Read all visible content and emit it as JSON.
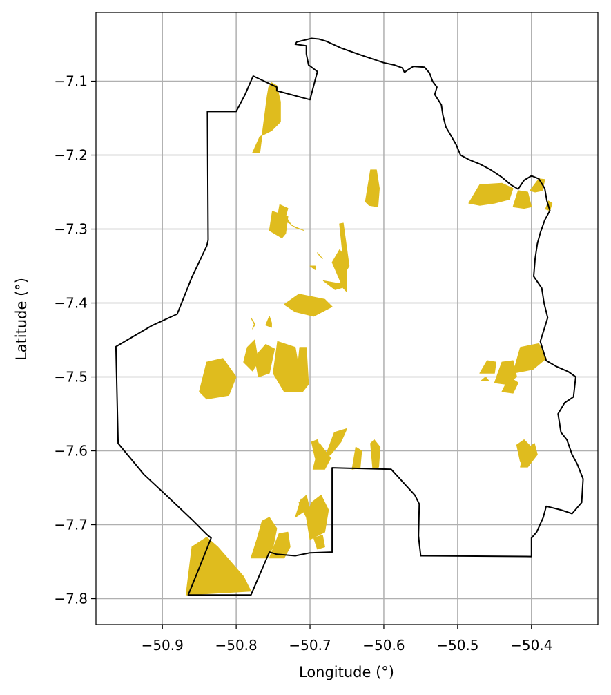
{
  "chart_data": {
    "type": "map",
    "xlabel": "Longitude (°)",
    "ylabel": "Latitude (°)",
    "xlim": [
      -50.99,
      -50.31
    ],
    "ylim": [
      -7.835,
      -7.007
    ],
    "grid": true,
    "x_ticks": [
      {
        "value": -50.9,
        "label": "−50.9"
      },
      {
        "value": -50.8,
        "label": "−50.8"
      },
      {
        "value": -50.7,
        "label": "−50.7"
      },
      {
        "value": -50.6,
        "label": "−50.6"
      },
      {
        "value": -50.5,
        "label": "−50.5"
      },
      {
        "value": -50.4,
        "label": "−50.4"
      }
    ],
    "y_ticks": [
      {
        "value": -7.1,
        "label": "−7.1"
      },
      {
        "value": -7.2,
        "label": "−7.2"
      },
      {
        "value": -7.3,
        "label": "−7.3"
      },
      {
        "value": -7.4,
        "label": "−7.4"
      },
      {
        "value": -7.5,
        "label": "−7.5"
      },
      {
        "value": -7.6,
        "label": "−7.6"
      },
      {
        "value": -7.7,
        "label": "−7.7"
      },
      {
        "value": -7.8,
        "label": "−7.8"
      }
    ],
    "colors": {
      "boundary": "#000000",
      "fill": "#DFBC1E",
      "grid": "#b0b0b0"
    },
    "boundary": [
      [
        -50.78,
        -7.795
      ],
      [
        -50.865,
        -7.795
      ],
      [
        -50.85,
        -7.758
      ],
      [
        -50.834,
        -7.718
      ],
      [
        -50.84,
        -7.713
      ],
      [
        -50.86,
        -7.693
      ],
      [
        -50.895,
        -7.66
      ],
      [
        -50.925,
        -7.632
      ],
      [
        -50.96,
        -7.59
      ],
      [
        -50.963,
        -7.459
      ],
      [
        -50.915,
        -7.431
      ],
      [
        -50.88,
        -7.415
      ],
      [
        -50.86,
        -7.365
      ],
      [
        -50.84,
        -7.323
      ],
      [
        -50.838,
        -7.315
      ],
      [
        -50.839,
        -7.141
      ],
      [
        -50.8,
        -7.141
      ],
      [
        -50.788,
        -7.118
      ],
      [
        -50.777,
        -7.093
      ],
      [
        -50.745,
        -7.108
      ],
      [
        -50.745,
        -7.113
      ],
      [
        -50.7,
        -7.125
      ],
      [
        -50.69,
        -7.087
      ],
      [
        -50.702,
        -7.078
      ],
      [
        -50.705,
        -7.063
      ],
      [
        -50.705,
        -7.052
      ],
      [
        -50.72,
        -7.05
      ],
      [
        -50.718,
        -7.047
      ],
      [
        -50.698,
        -7.042
      ],
      [
        -50.688,
        -7.043
      ],
      [
        -50.678,
        -7.046
      ],
      [
        -50.658,
        -7.055
      ],
      [
        -50.63,
        -7.065
      ],
      [
        -50.6,
        -7.075
      ],
      [
        -50.586,
        -7.078
      ],
      [
        -50.575,
        -7.082
      ],
      [
        -50.572,
        -7.088
      ],
      [
        -50.568,
        -7.085
      ],
      [
        -50.56,
        -7.08
      ],
      [
        -50.545,
        -7.081
      ],
      [
        -50.538,
        -7.089
      ],
      [
        -50.534,
        -7.1
      ],
      [
        -50.528,
        -7.108
      ],
      [
        -50.531,
        -7.118
      ],
      [
        -50.522,
        -7.132
      ],
      [
        -50.52,
        -7.146
      ],
      [
        -50.516,
        -7.162
      ],
      [
        -50.51,
        -7.172
      ],
      [
        -50.502,
        -7.186
      ],
      [
        -50.496,
        -7.2
      ],
      [
        -50.485,
        -7.206
      ],
      [
        -50.47,
        -7.212
      ],
      [
        -50.455,
        -7.22
      ],
      [
        -50.44,
        -7.23
      ],
      [
        -50.428,
        -7.24
      ],
      [
        -50.418,
        -7.246
      ],
      [
        -50.41,
        -7.234
      ],
      [
        -50.4,
        -7.228
      ],
      [
        -50.39,
        -7.232
      ],
      [
        -50.382,
        -7.245
      ],
      [
        -50.379,
        -7.262
      ],
      [
        -50.375,
        -7.275
      ],
      [
        -50.382,
        -7.288
      ],
      [
        -50.388,
        -7.305
      ],
      [
        -50.392,
        -7.32
      ],
      [
        -50.395,
        -7.34
      ],
      [
        -50.397,
        -7.364
      ],
      [
        -50.386,
        -7.38
      ],
      [
        -50.383,
        -7.4
      ],
      [
        -50.378,
        -7.42
      ],
      [
        -50.388,
        -7.452
      ],
      [
        -50.38,
        -7.478
      ],
      [
        -50.366,
        -7.486
      ],
      [
        -50.35,
        -7.493
      ],
      [
        -50.34,
        -7.5
      ],
      [
        -50.343,
        -7.527
      ],
      [
        -50.355,
        -7.535
      ],
      [
        -50.364,
        -7.55
      ],
      [
        -50.36,
        -7.575
      ],
      [
        -50.352,
        -7.585
      ],
      [
        -50.345,
        -7.605
      ],
      [
        -50.338,
        -7.618
      ],
      [
        -50.33,
        -7.638
      ],
      [
        -50.332,
        -7.67
      ],
      [
        -50.345,
        -7.685
      ],
      [
        -50.36,
        -7.68
      ],
      [
        -50.38,
        -7.675
      ],
      [
        -50.384,
        -7.69
      ],
      [
        -50.393,
        -7.71
      ],
      [
        -50.4,
        -7.718
      ],
      [
        -50.4,
        -7.743
      ],
      [
        -50.55,
        -7.742
      ],
      [
        -50.552,
        -7.725
      ],
      [
        -50.553,
        -7.715
      ],
      [
        -50.552,
        -7.672
      ],
      [
        -50.558,
        -7.66
      ],
      [
        -50.59,
        -7.625
      ],
      [
        -50.67,
        -7.623
      ],
      [
        -50.67,
        -7.66
      ],
      [
        -50.67,
        -7.737
      ],
      [
        -50.7,
        -7.738
      ],
      [
        -50.72,
        -7.742
      ],
      [
        -50.745,
        -7.74
      ],
      [
        -50.755,
        -7.737
      ],
      [
        -50.78,
        -7.795
      ]
    ],
    "areas": [
      [
        [
          -50.768,
          -7.197
        ],
        [
          -50.758,
          -7.12
        ],
        [
          -50.756,
          -7.108
        ],
        [
          -50.752,
          -7.102
        ],
        [
          -50.745,
          -7.106
        ],
        [
          -50.74,
          -7.128
        ],
        [
          -50.74,
          -7.155
        ],
        [
          -50.752,
          -7.167
        ],
        [
          -50.768,
          -7.175
        ],
        [
          -50.778,
          -7.197
        ]
      ],
      [
        [
          -50.745,
          -7.289
        ],
        [
          -50.741,
          -7.267
        ],
        [
          -50.73,
          -7.272
        ],
        [
          -50.733,
          -7.283
        ],
        [
          -50.725,
          -7.295
        ],
        [
          -50.708,
          -7.302
        ],
        [
          -50.72,
          -7.298
        ],
        [
          -50.728,
          -7.292
        ],
        [
          -50.733,
          -7.29
        ]
      ],
      [
        [
          -50.755,
          -7.302
        ],
        [
          -50.751,
          -7.276
        ],
        [
          -50.73,
          -7.283
        ],
        [
          -50.733,
          -7.306
        ],
        [
          -50.738,
          -7.312
        ]
      ],
      [
        [
          -50.653,
          -7.36
        ],
        [
          -50.66,
          -7.293
        ],
        [
          -50.655,
          -7.292
        ],
        [
          -50.647,
          -7.35
        ]
      ],
      [
        [
          -50.625,
          -7.263
        ],
        [
          -50.618,
          -7.22
        ],
        [
          -50.61,
          -7.22
        ],
        [
          -50.606,
          -7.245
        ],
        [
          -50.608,
          -7.27
        ],
        [
          -50.62,
          -7.268
        ]
      ],
      [
        [
          -50.735,
          -7.402
        ],
        [
          -50.715,
          -7.388
        ],
        [
          -50.68,
          -7.395
        ],
        [
          -50.67,
          -7.405
        ],
        [
          -50.695,
          -7.418
        ],
        [
          -50.72,
          -7.412
        ]
      ],
      [
        [
          -50.655,
          -7.38
        ],
        [
          -50.67,
          -7.345
        ],
        [
          -50.66,
          -7.328
        ],
        [
          -50.65,
          -7.34
        ],
        [
          -50.65,
          -7.385
        ]
      ],
      [
        [
          -50.683,
          -7.34
        ],
        [
          -50.69,
          -7.332
        ],
        [
          -50.688,
          -7.335
        ]
      ],
      [
        [
          -50.693,
          -7.355
        ],
        [
          -50.7,
          -7.35
        ],
        [
          -50.693,
          -7.35
        ]
      ],
      [
        [
          -50.665,
          -7.373
        ],
        [
          -50.682,
          -7.37
        ],
        [
          -50.666,
          -7.382
        ],
        [
          -50.652,
          -7.378
        ],
        [
          -50.652,
          -7.373
        ]
      ],
      [
        [
          -50.78,
          -7.42
        ],
        [
          -50.775,
          -7.428
        ],
        [
          -50.778,
          -7.435
        ],
        [
          -50.775,
          -7.43
        ]
      ],
      [
        [
          -50.755,
          -7.418
        ],
        [
          -50.76,
          -7.43
        ],
        [
          -50.752,
          -7.433
        ],
        [
          -50.752,
          -7.427
        ]
      ],
      [
        [
          -50.755,
          -7.495
        ],
        [
          -50.748,
          -7.462
        ],
        [
          -50.76,
          -7.456
        ],
        [
          -50.775,
          -7.473
        ],
        [
          -50.77,
          -7.5
        ]
      ],
      [
        [
          -50.85,
          -7.52
        ],
        [
          -50.84,
          -7.48
        ],
        [
          -50.818,
          -7.475
        ],
        [
          -50.8,
          -7.5
        ],
        [
          -50.81,
          -7.525
        ],
        [
          -50.84,
          -7.53
        ]
      ],
      [
        [
          -50.79,
          -7.48
        ],
        [
          -50.785,
          -7.46
        ],
        [
          -50.775,
          -7.45
        ],
        [
          -50.77,
          -7.48
        ],
        [
          -50.778,
          -7.492
        ]
      ],
      [
        [
          -50.75,
          -7.495
        ],
        [
          -50.744,
          -7.452
        ],
        [
          -50.72,
          -7.46
        ],
        [
          -50.71,
          -7.52
        ],
        [
          -50.735,
          -7.52
        ]
      ],
      [
        [
          -50.72,
          -7.52
        ],
        [
          -50.714,
          -7.46
        ],
        [
          -50.705,
          -7.46
        ],
        [
          -50.702,
          -7.51
        ],
        [
          -50.71,
          -7.52
        ]
      ],
      [
        [
          -50.68,
          -7.61
        ],
        [
          -50.667,
          -7.575
        ],
        [
          -50.65,
          -7.57
        ],
        [
          -50.658,
          -7.588
        ],
        [
          -50.672,
          -7.605
        ]
      ],
      [
        [
          -50.696,
          -7.625
        ],
        [
          -50.687,
          -7.59
        ],
        [
          -50.672,
          -7.61
        ],
        [
          -50.68,
          -7.625
        ]
      ],
      [
        [
          -50.643,
          -7.625
        ],
        [
          -50.638,
          -7.595
        ],
        [
          -50.63,
          -7.6
        ],
        [
          -50.632,
          -7.623
        ]
      ],
      [
        [
          -50.615,
          -7.624
        ],
        [
          -50.618,
          -7.59
        ],
        [
          -50.613,
          -7.585
        ],
        [
          -50.605,
          -7.595
        ],
        [
          -50.607,
          -7.622
        ]
      ],
      [
        [
          -50.693,
          -7.61
        ],
        [
          -50.698,
          -7.588
        ],
        [
          -50.69,
          -7.585
        ],
        [
          -50.685,
          -7.6
        ]
      ],
      [
        [
          -50.7,
          -7.72
        ],
        [
          -50.705,
          -7.69
        ],
        [
          -50.698,
          -7.67
        ],
        [
          -50.685,
          -7.66
        ],
        [
          -50.675,
          -7.68
        ],
        [
          -50.68,
          -7.71
        ]
      ],
      [
        [
          -50.705,
          -7.69
        ],
        [
          -50.715,
          -7.67
        ],
        [
          -50.705,
          -7.66
        ],
        [
          -50.7,
          -7.68
        ]
      ],
      [
        [
          -50.72,
          -7.69
        ],
        [
          -50.712,
          -7.665
        ],
        [
          -50.705,
          -7.68
        ]
      ],
      [
        [
          -50.69,
          -7.733
        ],
        [
          -50.695,
          -7.718
        ],
        [
          -50.683,
          -7.714
        ],
        [
          -50.68,
          -7.73
        ]
      ],
      [
        [
          -50.78,
          -7.79
        ],
        [
          -50.79,
          -7.77
        ],
        [
          -50.825,
          -7.73
        ],
        [
          -50.84,
          -7.717
        ],
        [
          -50.86,
          -7.73
        ],
        [
          -50.868,
          -7.795
        ]
      ],
      [
        [
          -50.78,
          -7.745
        ],
        [
          -50.772,
          -7.72
        ],
        [
          -50.765,
          -7.695
        ],
        [
          -50.755,
          -7.69
        ],
        [
          -50.745,
          -7.705
        ],
        [
          -50.75,
          -7.73
        ],
        [
          -50.758,
          -7.745
        ]
      ],
      [
        [
          -50.755,
          -7.745
        ],
        [
          -50.742,
          -7.712
        ],
        [
          -50.73,
          -7.71
        ],
        [
          -50.727,
          -7.73
        ],
        [
          -50.735,
          -7.745
        ]
      ],
      [
        [
          -50.485,
          -7.265
        ],
        [
          -50.47,
          -7.24
        ],
        [
          -50.44,
          -7.238
        ],
        [
          -50.425,
          -7.245
        ],
        [
          -50.43,
          -7.26
        ],
        [
          -50.45,
          -7.265
        ],
        [
          -50.47,
          -7.268
        ]
      ],
      [
        [
          -50.425,
          -7.27
        ],
        [
          -50.418,
          -7.248
        ],
        [
          -50.405,
          -7.25
        ],
        [
          -50.4,
          -7.27
        ],
        [
          -50.41,
          -7.272
        ]
      ],
      [
        [
          -50.402,
          -7.248
        ],
        [
          -50.39,
          -7.232
        ],
        [
          -50.382,
          -7.233
        ],
        [
          -50.385,
          -7.248
        ],
        [
          -50.395,
          -7.25
        ]
      ],
      [
        [
          -50.381,
          -7.273
        ],
        [
          -50.377,
          -7.262
        ],
        [
          -50.372,
          -7.265
        ],
        [
          -50.375,
          -7.275
        ]
      ],
      [
        [
          -50.425,
          -7.495
        ],
        [
          -50.415,
          -7.46
        ],
        [
          -50.39,
          -7.455
        ],
        [
          -50.38,
          -7.475
        ],
        [
          -50.398,
          -7.49
        ]
      ],
      [
        [
          -50.45,
          -7.508
        ],
        [
          -50.44,
          -7.48
        ],
        [
          -50.425,
          -7.478
        ],
        [
          -50.42,
          -7.5
        ],
        [
          -50.435,
          -7.51
        ]
      ],
      [
        [
          -50.47,
          -7.495
        ],
        [
          -50.46,
          -7.478
        ],
        [
          -50.448,
          -7.48
        ],
        [
          -50.45,
          -7.495
        ]
      ],
      [
        [
          -50.44,
          -7.52
        ],
        [
          -50.43,
          -7.5
        ],
        [
          -50.418,
          -7.508
        ],
        [
          -50.425,
          -7.522
        ]
      ],
      [
        [
          -50.468,
          -7.505
        ],
        [
          -50.462,
          -7.5
        ],
        [
          -50.458,
          -7.505
        ]
      ],
      [
        [
          -50.403,
          -7.618
        ],
        [
          -50.395,
          -7.6
        ],
        [
          -50.41,
          -7.585
        ],
        [
          -50.42,
          -7.592
        ],
        [
          -50.415,
          -7.615
        ]
      ],
      [
        [
          -50.415,
          -7.622
        ],
        [
          -50.41,
          -7.6
        ],
        [
          -50.396,
          -7.59
        ],
        [
          -50.392,
          -7.605
        ],
        [
          -50.405,
          -7.622
        ]
      ]
    ]
  }
}
